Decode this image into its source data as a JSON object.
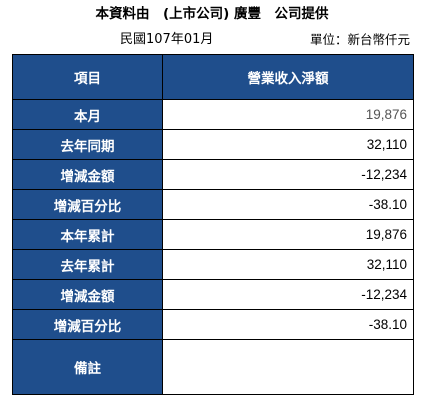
{
  "header": {
    "title": "本資料由　(上市公司) 廣豐　公司提供",
    "period": "民國107年01月",
    "unit": "單位：新台幣仟元"
  },
  "table": {
    "col_headers": [
      "項目",
      "營業收入淨額"
    ],
    "rows": [
      {
        "label": "本月",
        "value": "19,876"
      },
      {
        "label": "去年同期",
        "value": "32,110"
      },
      {
        "label": "增減金額",
        "value": "-12,234"
      },
      {
        "label": "增減百分比",
        "value": "-38.10"
      },
      {
        "label": "本年累計",
        "value": "19,876"
      },
      {
        "label": "去年累計",
        "value": "32,110"
      },
      {
        "label": "增減金額",
        "value": "-12,234"
      },
      {
        "label": "增減百分比",
        "value": "-38.10"
      },
      {
        "label": "備註",
        "value": ""
      }
    ]
  }
}
